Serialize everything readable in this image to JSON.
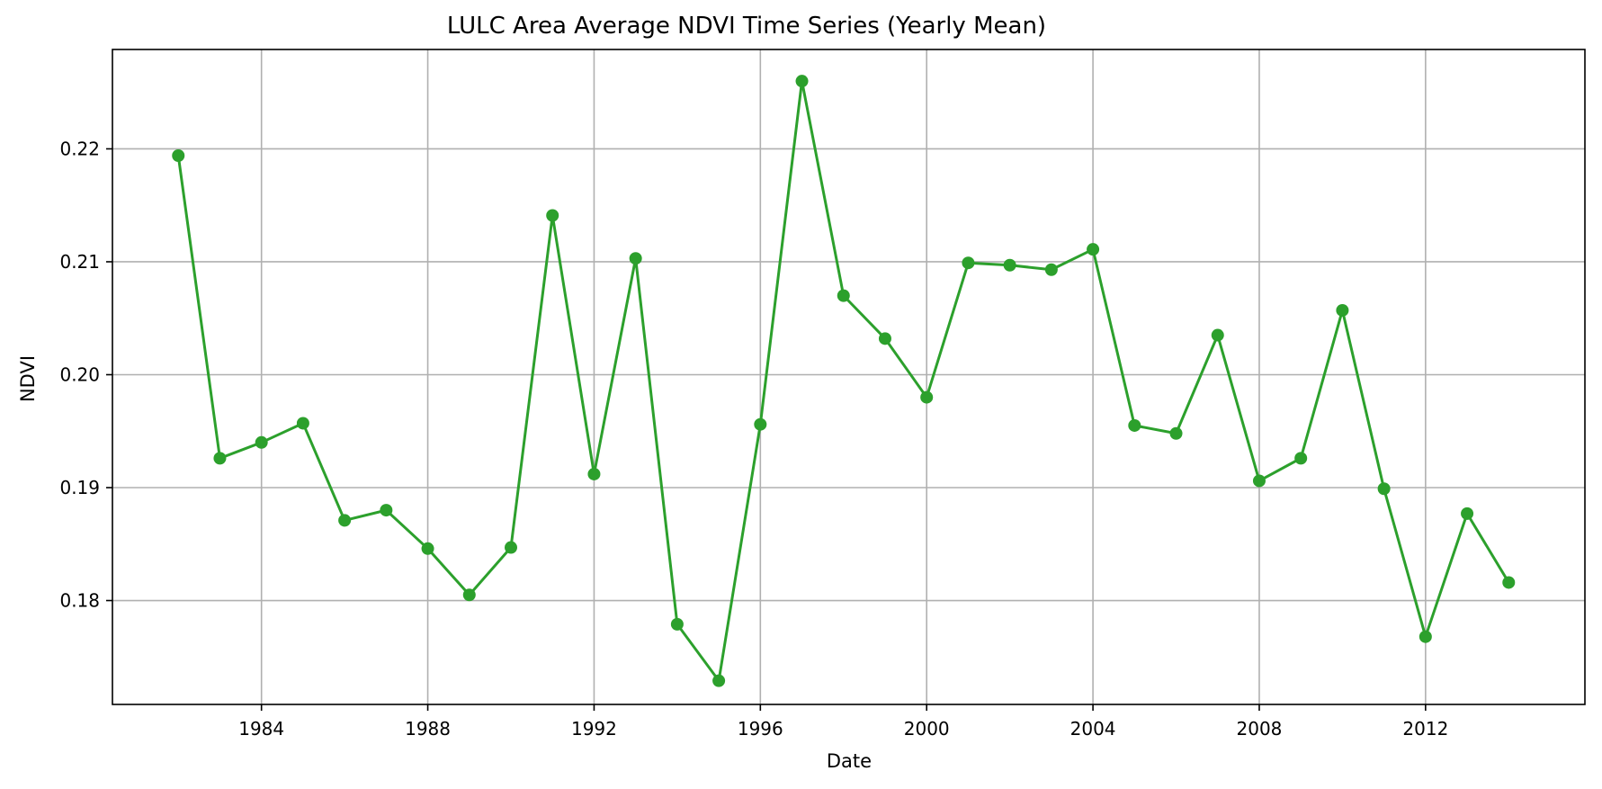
{
  "chart_data": {
    "type": "line",
    "title": "LULC Area Average NDVI Time Series (Yearly Mean)",
    "xlabel": "Date",
    "ylabel": "NDVI",
    "x_ticks": [
      "1984",
      "1988",
      "1992",
      "1996",
      "2000",
      "2004",
      "2008",
      "2012"
    ],
    "y_ticks": [
      "0.18",
      "0.19",
      "0.20",
      "0.21",
      "0.22"
    ],
    "xlim": [
      "1980-06-01",
      "2015-11-01"
    ],
    "ylim": [
      0.1708,
      0.2288
    ],
    "grid": true,
    "legend": "none",
    "series": [
      {
        "color": "#2ca02c",
        "marker": "circle",
        "x": [
          "1982-01-01",
          "1983-01-01",
          "1984-01-01",
          "1985-01-01",
          "1986-01-01",
          "1987-01-01",
          "1988-01-01",
          "1989-01-01",
          "1990-01-01",
          "1991-01-01",
          "1992-01-01",
          "1993-01-01",
          "1994-01-01",
          "1995-01-01",
          "1996-01-01",
          "1997-01-01",
          "1998-01-01",
          "1999-01-01",
          "2000-01-01",
          "2001-01-01",
          "2002-01-01",
          "2003-01-01",
          "2004-01-01",
          "2005-01-01",
          "2006-01-01",
          "2007-01-01",
          "2008-01-01",
          "2009-01-01",
          "2010-01-01",
          "2011-01-01",
          "2012-01-01",
          "2013-01-01",
          "2014-01-01"
        ],
        "values": [
          0.2194,
          0.1926,
          0.194,
          0.1957,
          0.1871,
          0.188,
          0.1846,
          0.1805,
          0.1847,
          0.2141,
          0.1912,
          0.2103,
          0.1779,
          0.1729,
          0.1956,
          0.226,
          0.207,
          0.2032,
          0.198,
          0.2099,
          0.2097,
          0.2093,
          0.2111,
          0.1955,
          0.1948,
          0.2035,
          0.1906,
          0.1926,
          0.2057,
          0.1899,
          0.1768,
          0.1877,
          0.1816
        ]
      }
    ]
  }
}
